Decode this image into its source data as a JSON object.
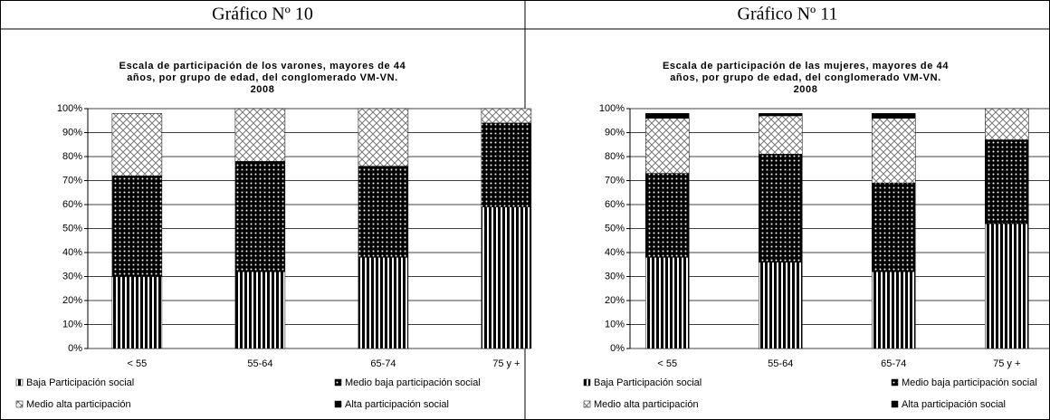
{
  "headers": [
    "Gráfico Nº 10",
    "Gráfico Nº 11"
  ],
  "chart_data": [
    {
      "type": "stacked-bar",
      "title": [
        "Escala de participación de los varones, mayores de 44",
        "años,  por grupo de edad, del conglomerado VM-VN.",
        "2008"
      ],
      "categories": [
        "< 55",
        "55-64",
        "65-74",
        "75 y +"
      ],
      "series": [
        {
          "name": "Baja Participación social",
          "pattern": "stripes",
          "values": [
            30,
            32,
            38,
            59
          ]
        },
        {
          "name": "Medio baja participación social",
          "pattern": "dots",
          "values": [
            42,
            46,
            38,
            35
          ]
        },
        {
          "name": "Medio alta participación",
          "pattern": "cross",
          "values": [
            26,
            22,
            24,
            6
          ]
        },
        {
          "name": "Alta participación social",
          "pattern": "solid",
          "values": [
            0,
            0,
            0,
            0
          ]
        }
      ],
      "ylim": [
        0,
        100
      ],
      "yticks": [
        {
          "value": 0,
          "label": "0%"
        },
        {
          "value": 10,
          "label": "10%"
        },
        {
          "value": 20,
          "label": "20%"
        },
        {
          "value": 30,
          "label": "30%"
        },
        {
          "value": 40,
          "label": "40%"
        },
        {
          "value": 50,
          "label": "50%"
        },
        {
          "value": 60,
          "label": "60%"
        },
        {
          "value": 70,
          "label": "70%"
        },
        {
          "value": 80,
          "label": "80%"
        },
        {
          "value": 90,
          "label": "90%"
        },
        {
          "value": 100,
          "label": "100%"
        }
      ],
      "grid": true,
      "legend": "bottom"
    },
    {
      "type": "stacked-bar",
      "title": [
        "Escala de participación de las mujeres, mayores de 44",
        "años,  por grupo de edad, del conglomerado VM-VN.",
        "2008"
      ],
      "categories": [
        "< 55",
        "55-64",
        "65-74",
        "75 y +"
      ],
      "series": [
        {
          "name": "Baja Participación social",
          "pattern": "stripes",
          "values": [
            38,
            36,
            32,
            52
          ]
        },
        {
          "name": "Medio baja participación social",
          "pattern": "dots",
          "values": [
            35,
            45,
            37,
            35
          ]
        },
        {
          "name": "Medio alta participación",
          "pattern": "cross",
          "values": [
            23,
            16,
            27,
            13
          ]
        },
        {
          "name": "Alta participación social",
          "pattern": "solid",
          "values": [
            2,
            1,
            2,
            0
          ]
        }
      ],
      "ylim": [
        0,
        100
      ],
      "yticks": [
        {
          "value": 0,
          "label": "0%"
        },
        {
          "value": 10,
          "label": "10%"
        },
        {
          "value": 20,
          "label": "20%"
        },
        {
          "value": 30,
          "label": "30%"
        },
        {
          "value": 40,
          "label": "40%"
        },
        {
          "value": 50,
          "label": "50%"
        },
        {
          "value": 60,
          "label": "60%"
        },
        {
          "value": 70,
          "label": "70%"
        },
        {
          "value": 80,
          "label": "80%"
        },
        {
          "value": 90,
          "label": "90%"
        },
        {
          "value": 100,
          "label": "100%"
        }
      ],
      "grid": true,
      "legend": "bottom"
    }
  ]
}
